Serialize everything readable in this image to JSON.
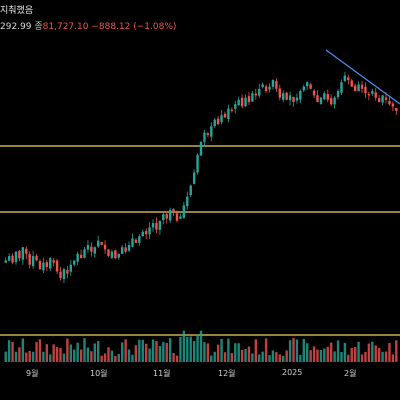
{
  "header": {
    "title_fragment": "지춰했음",
    "ohlc_fragment": "292.99",
    "close_label": "종",
    "close_value": "81,727.10",
    "change": "−888.12 (−1.08%)"
  },
  "colors": {
    "background": "#000000",
    "up": "#26a69a",
    "down": "#ef5350",
    "level_line": "#f3d35a",
    "trend_line": "#4f8ff7"
  },
  "chart_data": {
    "type": "candlestick",
    "x_tick_labels": [
      "9월",
      "10월",
      "11월",
      "12월",
      "2025",
      "2월"
    ],
    "horizontal_levels": [
      "upper",
      "middle",
      "lower"
    ],
    "trendline": "descending from local top",
    "price_path_note": "",
    "closes": [
      0.18,
      0.2,
      0.17,
      0.22,
      0.19,
      0.24,
      0.21,
      0.16,
      0.2,
      0.18,
      0.14,
      0.17,
      0.15,
      0.19,
      0.17,
      0.13,
      0.1,
      0.14,
      0.12,
      0.16,
      0.18,
      0.21,
      0.19,
      0.23,
      0.25,
      0.22,
      0.24,
      0.27,
      0.25,
      0.23,
      0.2,
      0.22,
      0.19,
      0.21,
      0.24,
      0.22,
      0.25,
      0.28,
      0.26,
      0.29,
      0.31,
      0.3,
      0.33,
      0.35,
      0.32,
      0.36,
      0.39,
      0.37,
      0.41,
      0.4,
      0.36,
      0.38,
      0.43,
      0.47,
      0.52,
      0.58,
      0.66,
      0.72,
      0.76,
      0.75,
      0.79,
      0.82,
      0.8,
      0.84,
      0.83,
      0.87,
      0.86,
      0.89,
      0.91,
      0.88,
      0.92,
      0.9,
      0.94,
      0.93,
      0.96,
      0.98,
      0.95,
      0.97,
      1.0,
      0.96,
      0.92,
      0.94,
      0.91,
      0.93,
      0.9,
      0.92,
      0.95,
      0.97,
      0.99,
      0.96,
      0.93,
      0.9,
      0.92,
      0.94,
      0.91,
      0.89,
      0.92,
      0.95,
      0.99,
      1.02,
      1.0,
      0.97,
      0.95,
      0.98,
      0.96,
      0.94,
      0.93,
      0.95,
      0.92,
      0.9,
      0.93,
      0.91,
      0.89,
      0.88,
      0.86
    ]
  },
  "icons": {}
}
